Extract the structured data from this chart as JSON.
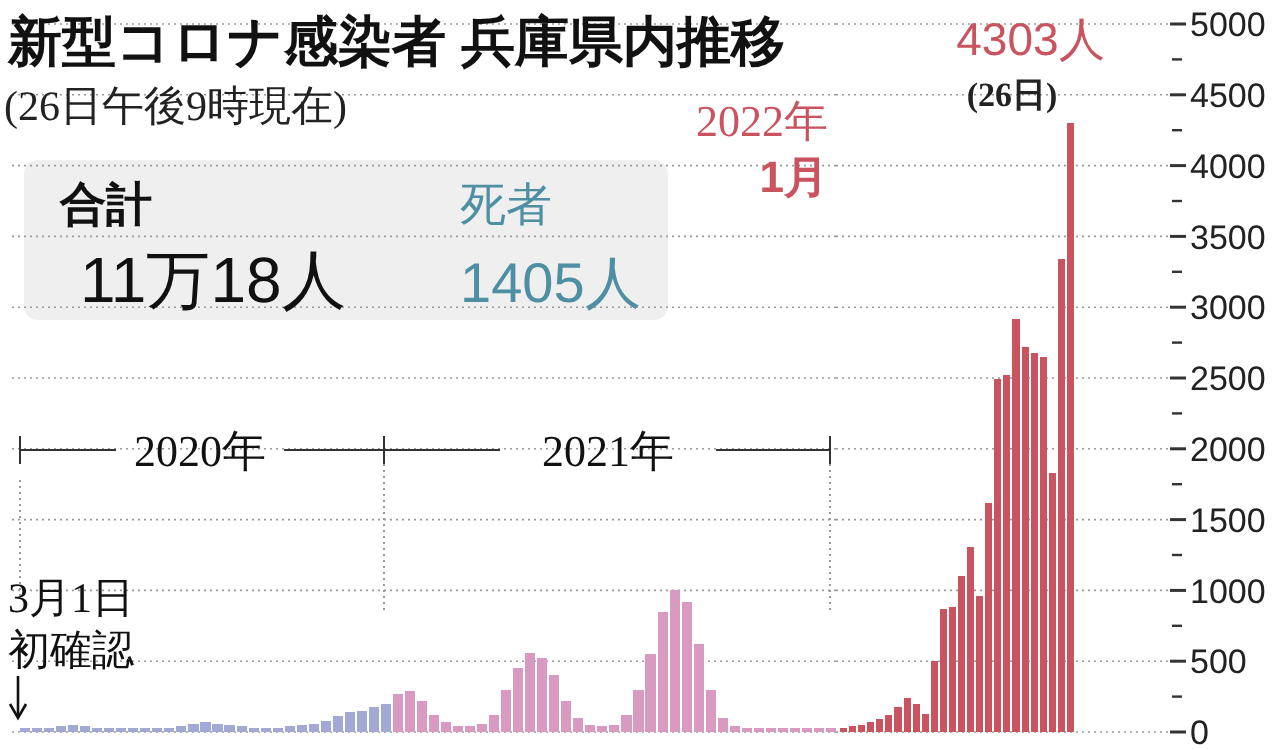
{
  "chart_data": [
    {
      "type": "bar",
      "title": "新型コロナ感染者 兵庫県内推移",
      "subtitle": "(26日午後9時現在)",
      "categories": [
        null,
        null,
        null,
        null,
        null,
        null,
        null,
        null,
        null,
        null,
        null,
        null,
        null,
        null,
        null,
        null,
        null,
        null,
        null,
        null,
        null,
        null,
        null,
        null,
        null,
        null,
        null,
        null,
        null,
        null,
        null,
        null,
        null,
        null,
        null,
        null,
        null,
        null,
        null,
        null,
        null,
        null,
        null,
        null,
        null,
        null,
        null,
        null,
        null,
        null,
        null,
        null,
        null,
        null,
        null,
        null,
        null,
        null,
        null,
        null,
        null,
        null,
        null,
        null,
        null,
        null,
        null,
        null
      ],
      "values": [
        30,
        30,
        30,
        40,
        50,
        40,
        30,
        30,
        30,
        30,
        30,
        30,
        30,
        40,
        60,
        70,
        60,
        50,
        40,
        30,
        30,
        30,
        40,
        50,
        60,
        80,
        110,
        140,
        150,
        180,
        200,
        270,
        290,
        220,
        120,
        70,
        40,
        40,
        60,
        120,
        300,
        450,
        560,
        520,
        400,
        220,
        100,
        50,
        40,
        50,
        120,
        300,
        550,
        850,
        1000,
        920,
        620,
        300,
        100,
        40,
        30,
        30,
        30,
        30,
        30,
        30,
        30,
        30
      ],
      "colors": [
        "#a3a9d6",
        "#a3a9d6",
        "#a3a9d6",
        "#a3a9d6",
        "#a3a9d6",
        "#a3a9d6",
        "#a3a9d6",
        "#a3a9d6",
        "#a3a9d6",
        "#a3a9d6",
        "#a3a9d6",
        "#a3a9d6",
        "#a3a9d6",
        "#a3a9d6",
        "#a3a9d6",
        "#a3a9d6",
        "#a3a9d6",
        "#a3a9d6",
        "#a3a9d6",
        "#a3a9d6",
        "#a3a9d6",
        "#a3a9d6",
        "#a3a9d6",
        "#a3a9d6",
        "#a3a9d6",
        "#a3a9d6",
        "#a3a9d6",
        "#a3a9d6",
        "#a3a9d6",
        "#a3a9d6",
        "#a3a9d6",
        "#d89ac0",
        "#d89ac0",
        "#d89ac0",
        "#d89ac0",
        "#d89ac0",
        "#d89ac0",
        "#d89ac0",
        "#d89ac0",
        "#d89ac0",
        "#d89ac0",
        "#d89ac0",
        "#d89ac0",
        "#d89ac0",
        "#d89ac0",
        "#d89ac0",
        "#d89ac0",
        "#d89ac0",
        "#d89ac0",
        "#d89ac0",
        "#d89ac0",
        "#d89ac0",
        "#d89ac0",
        "#d89ac0",
        "#d89ac0",
        "#d89ac0",
        "#d89ac0",
        "#d89ac0",
        "#d89ac0",
        "#d89ac0",
        "#d89ac0",
        "#d89ac0",
        "#d89ac0",
        "#d89ac0",
        "#d89ac0",
        "#d89ac0",
        "#d89ac0",
        "#d89ac0"
      ],
      "ylim": [
        0,
        5000
      ],
      "yticks": [
        0,
        500,
        1000,
        1500,
        2000,
        2500,
        3000,
        3500,
        4000,
        4500,
        5000
      ],
      "tick_labels": false,
      "grid": "y",
      "annotations": [
        "合計",
        "11万18人",
        "死者",
        "1405人",
        "2020年",
        "2021年",
        "3月1日",
        "初確認"
      ]
    },
    {
      "type": "bar",
      "categories": [
        null,
        null,
        null,
        null,
        null,
        null,
        null,
        null,
        null,
        null,
        null,
        null,
        null,
        null,
        null,
        null,
        null,
        null,
        null,
        null,
        null,
        null,
        null,
        null,
        null,
        null
      ],
      "values": [
        30,
        40,
        50,
        70,
        90,
        120,
        180,
        240,
        200,
        130,
        500,
        870,
        880,
        1100,
        1310,
        960,
        1620,
        2490,
        2520,
        2920,
        2720,
        2680,
        2650,
        1830,
        3340,
        4303
      ],
      "color": "#c9535e",
      "value_labels": [
        null,
        null,
        null,
        null,
        null,
        null,
        null,
        null,
        null,
        null,
        null,
        null,
        null,
        null,
        null,
        null,
        null,
        null,
        null,
        null,
        null,
        null,
        null,
        null,
        null,
        "4303人"
      ],
      "ylim": [
        0,
        5000
      ],
      "yticks": [
        0,
        500,
        1000,
        1500,
        2000,
        2500,
        3000,
        3500,
        4000,
        4500,
        5000
      ],
      "tick_labels": "y",
      "grid": "y",
      "annotations": [
        "2022年",
        "1月",
        "(26日)"
      ]
    }
  ]
}
